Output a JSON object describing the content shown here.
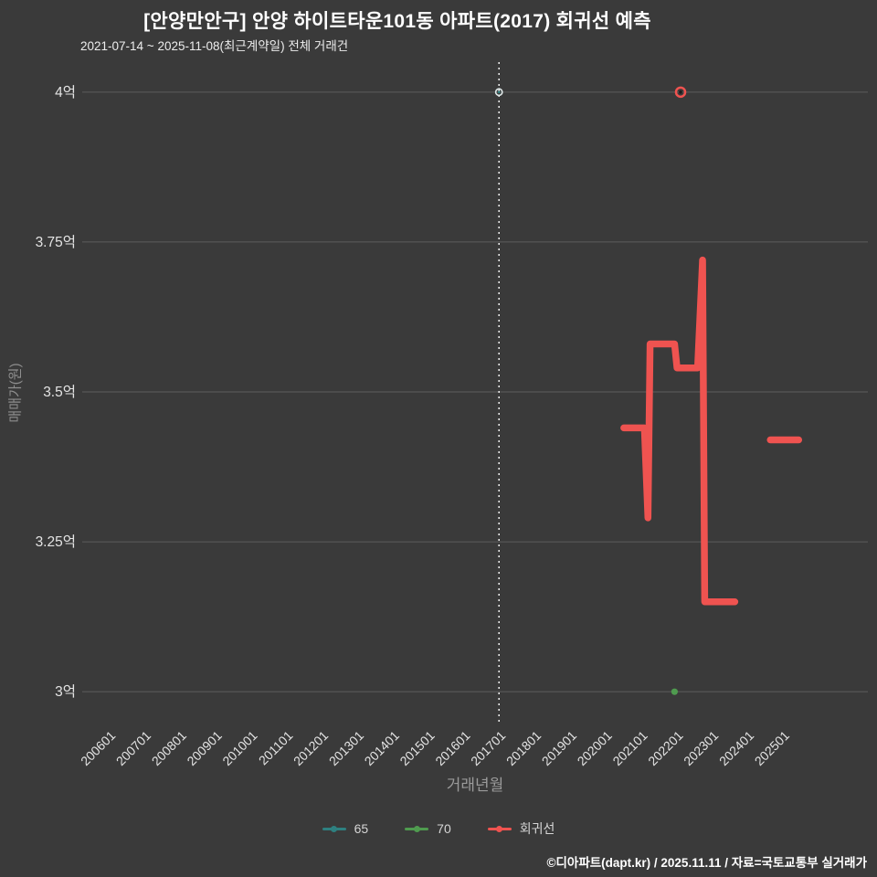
{
  "colors": {
    "background": "#3a3a3a",
    "grid": "#5d5d5d",
    "tick_text": "#e4e4e4",
    "axis_title": "#909090",
    "vline": "#ffffff",
    "marker_center": "#1c1c1c",
    "series65_halo": "#dfe9e9"
  },
  "footer": {
    "credit": "©디아파트(dapt.kr) / 2025.11.11 / 자료=국토교통부 실거래가"
  },
  "chart_data": {
    "type": "line",
    "title": "[안양만안구] 안양 하이트타운101동 아파트(2017) 회귀선 예측",
    "subtitle": "2021-07-14 ~ 2025-11-08(최근계약일) 전체 거래건",
    "xlabel": "거래년월",
    "ylabel": "매매가(원)",
    "x_ticks": [
      "200601",
      "200701",
      "200801",
      "200901",
      "201001",
      "201101",
      "201201",
      "201301",
      "201401",
      "201501",
      "201601",
      "201701",
      "201801",
      "201901",
      "202001",
      "202101",
      "202201",
      "202301",
      "202401",
      "202501"
    ],
    "y_ticks": [
      {
        "label": "4억",
        "value": 4.0
      },
      {
        "label": "3.75억",
        "value": 3.75
      },
      {
        "label": "3.5억",
        "value": 3.5
      },
      {
        "label": "3.25억",
        "value": 3.25
      },
      {
        "label": "3억",
        "value": 3.0
      }
    ],
    "xlim": [
      2005.35,
      2027.5
    ],
    "ylim": [
      2.95,
      4.05
    ],
    "grid": "horizontal-only",
    "legend_position": "bottom-center",
    "vline": {
      "x": 2017.1,
      "style": "dotted",
      "color": "#ffffff"
    },
    "series": [
      {
        "name": "65",
        "type": "scatter",
        "color": "#2e8080",
        "points": [
          [
            2017.1,
            4.0
          ]
        ]
      },
      {
        "name": "70",
        "type": "scatter",
        "color": "#4f9b4f",
        "points": [
          [
            2022.05,
            3.0
          ]
        ]
      },
      {
        "name": "회귀선",
        "type": "line",
        "color": "#ef5350",
        "width": 7.5,
        "segments": [
          [
            [
              2020.62,
              3.44
            ],
            [
              2021.2,
              3.44
            ],
            [
              2021.3,
              3.29
            ],
            [
              2021.36,
              3.58
            ],
            [
              2022.05,
              3.58
            ],
            [
              2022.12,
              3.54
            ],
            [
              2022.7,
              3.54
            ],
            [
              2022.84,
              3.72
            ],
            [
              2022.9,
              3.15
            ],
            [
              2023.75,
              3.15
            ]
          ],
          [
            [
              2024.75,
              3.42
            ],
            [
              2025.55,
              3.42
            ]
          ]
        ],
        "markers": [
          [
            2022.22,
            4.0
          ]
        ]
      }
    ]
  }
}
